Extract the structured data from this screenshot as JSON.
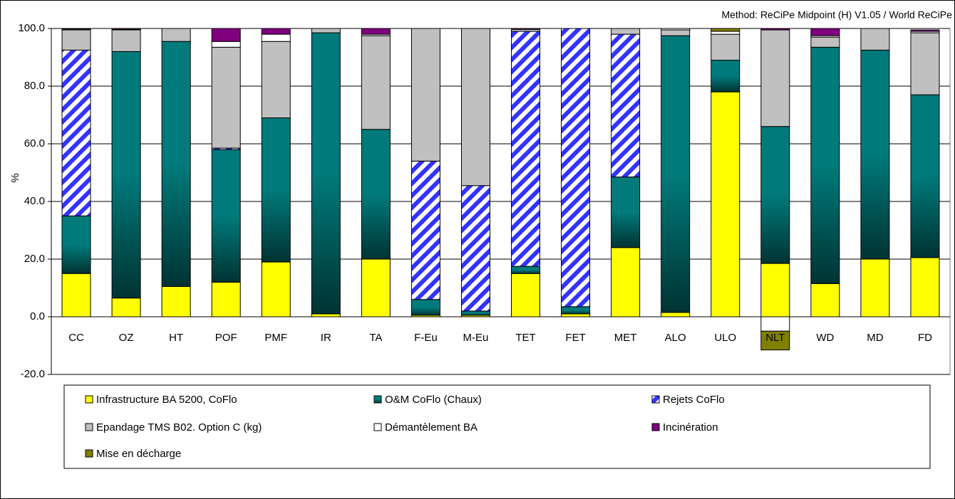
{
  "chart_data": {
    "type": "stacked_bar",
    "annotation": "Method: ReCiPe Midpoint (H) V1.05 /  World ReCiPe H / Characterisation",
    "y_label": "%",
    "categories": [
      "CC",
      "OZ",
      "HT",
      "POF",
      "PMF",
      "IR",
      "TA",
      "F-Eu",
      "M-Eu",
      "TET",
      "FET",
      "MET",
      "ALO",
      "ULO",
      "NLT",
      "WD",
      "MD",
      "FD"
    ],
    "series": [
      {
        "name": "Infrastructure BA 5200, CoFlo",
        "color": "#ffff00",
        "fill_style": "solid",
        "values": [
          15,
          6.5,
          10.5,
          12,
          19,
          1,
          20,
          0.5,
          0.5,
          15,
          1,
          24,
          1.5,
          78,
          18.5,
          11.5,
          20,
          20.5
        ]
      },
      {
        "name": "O&M CoFlo (Chaux)",
        "color": "#007a7a",
        "fill_style": "gradient",
        "values": [
          20,
          85.5,
          85,
          46,
          50,
          97.5,
          45,
          5.5,
          1.5,
          2.5,
          2.5,
          24.5,
          96,
          11,
          47.5,
          82,
          72.5,
          56.5
        ]
      },
      {
        "name": "Rejets CoFlo",
        "color": "#3333ff",
        "fill_style": "hatch",
        "values": [
          57.5,
          0,
          0,
          0.5,
          0,
          0,
          0,
          48,
          43.5,
          81.5,
          96.5,
          49.5,
          0,
          0,
          0,
          0,
          0,
          0
        ]
      },
      {
        "name": "Epandage TMS B02. Option C (kg)",
        "color": "#c0c0c0",
        "fill_style": "solid",
        "values": [
          7,
          7.5,
          4.5,
          35,
          26.5,
          1.5,
          32.5,
          46,
          54.5,
          0.7,
          0,
          2,
          2,
          9,
          33.5,
          3.5,
          7.5,
          21.5
        ]
      },
      {
        "name": "Démantèlement BA",
        "color": "#ffffff",
        "fill_style": "solid",
        "values": [
          0.3,
          0.2,
          0,
          2,
          2.5,
          0,
          0.5,
          0,
          0,
          0,
          0,
          0,
          0.5,
          1,
          -5,
          0.5,
          0,
          0.5
        ]
      },
      {
        "name": "Incinération",
        "color": "#800080",
        "fill_style": "solid",
        "values": [
          0.2,
          0.3,
          0,
          4.5,
          2,
          0,
          2,
          0,
          0,
          0.3,
          0,
          0,
          0,
          0,
          0.5,
          2.5,
          0,
          0.5
        ]
      },
      {
        "name": "Mise en décharge",
        "color": "#808000",
        "fill_style": "solid",
        "values": [
          0,
          0,
          0,
          0,
          0,
          0,
          0,
          0,
          0,
          0,
          0,
          0,
          0,
          1,
          -6.5,
          0,
          0,
          0
        ]
      }
    ],
    "ylim": [
      -20,
      100
    ],
    "yticks": [
      {
        "value": -20,
        "label": "-20.0"
      },
      {
        "value": 0,
        "label": "0.0"
      },
      {
        "value": 20,
        "label": "20.0"
      },
      {
        "value": 40,
        "label": "40.0"
      },
      {
        "value": 60,
        "label": "60.0"
      },
      {
        "value": 80,
        "label": "80.0"
      },
      {
        "value": 100,
        "label": "100.0"
      }
    ],
    "grid": true
  }
}
